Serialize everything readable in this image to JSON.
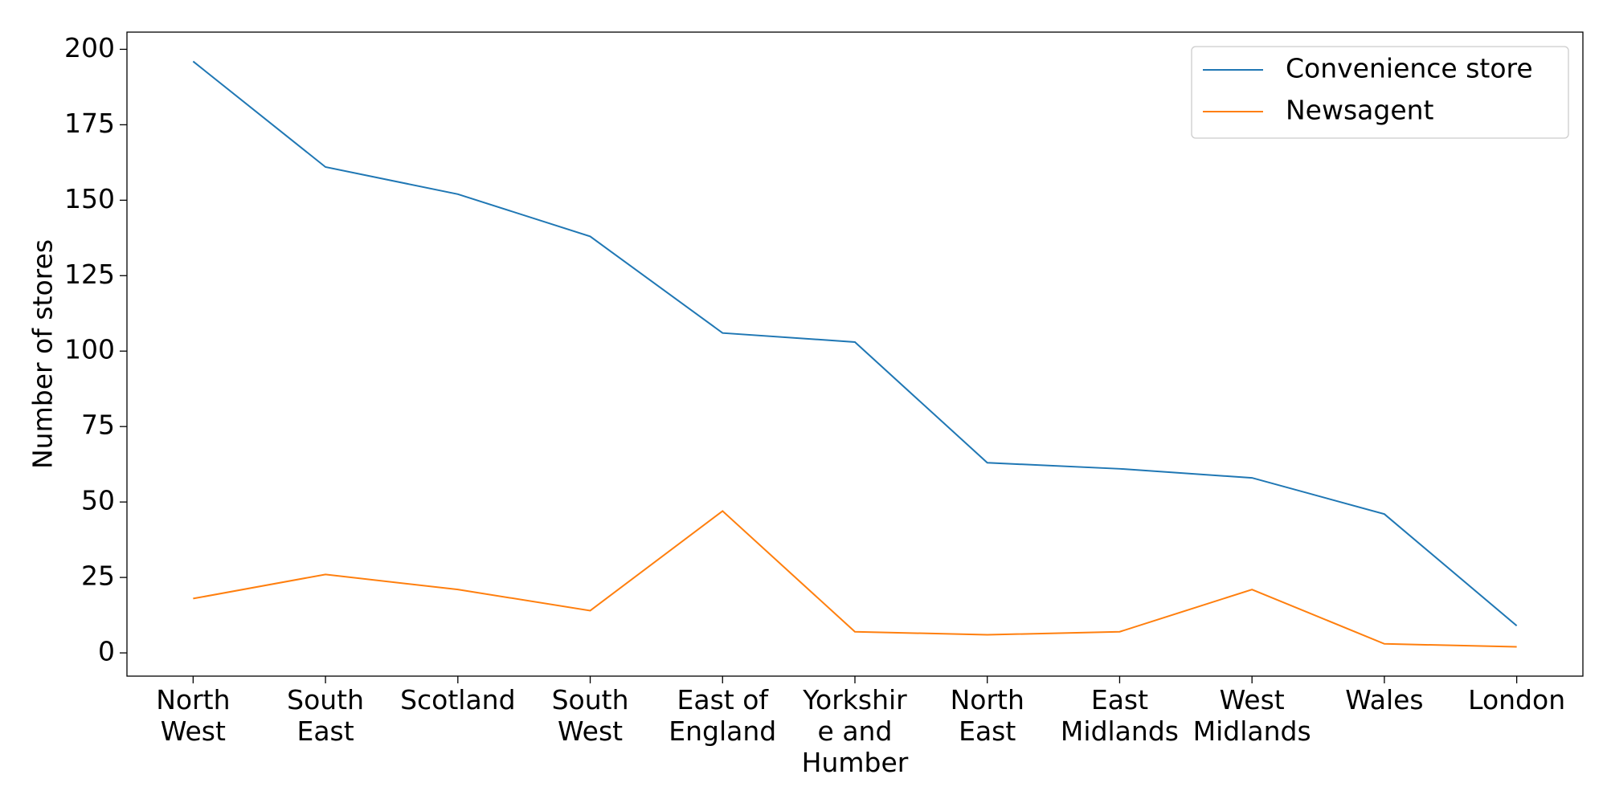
{
  "chart_data": {
    "type": "line",
    "y_label": "Number of stores",
    "categories": [
      "North\nWest",
      "South\nEast",
      "Scotland",
      "South\nWest",
      "East of\nEngland",
      "Yorkshir\ne and\nHumber",
      "North\nEast",
      "East\nMidlands",
      "West\nMidlands",
      "Wales",
      "London"
    ],
    "series": [
      {
        "name": "Convenience store",
        "color": "#1f77b4",
        "values": [
          196,
          161,
          152,
          138,
          106,
          103,
          63,
          61,
          58,
          46,
          9
        ]
      },
      {
        "name": "Newsagent",
        "color": "#ff7f0e",
        "values": [
          18,
          26,
          21,
          14,
          47,
          7,
          6,
          7,
          21,
          3,
          2
        ]
      }
    ],
    "ylim": [
      -7.7,
      205.7
    ],
    "yticks": [
      0,
      25,
      50,
      75,
      100,
      125,
      150,
      175,
      200
    ],
    "grid": false,
    "legend": "upper right"
  }
}
